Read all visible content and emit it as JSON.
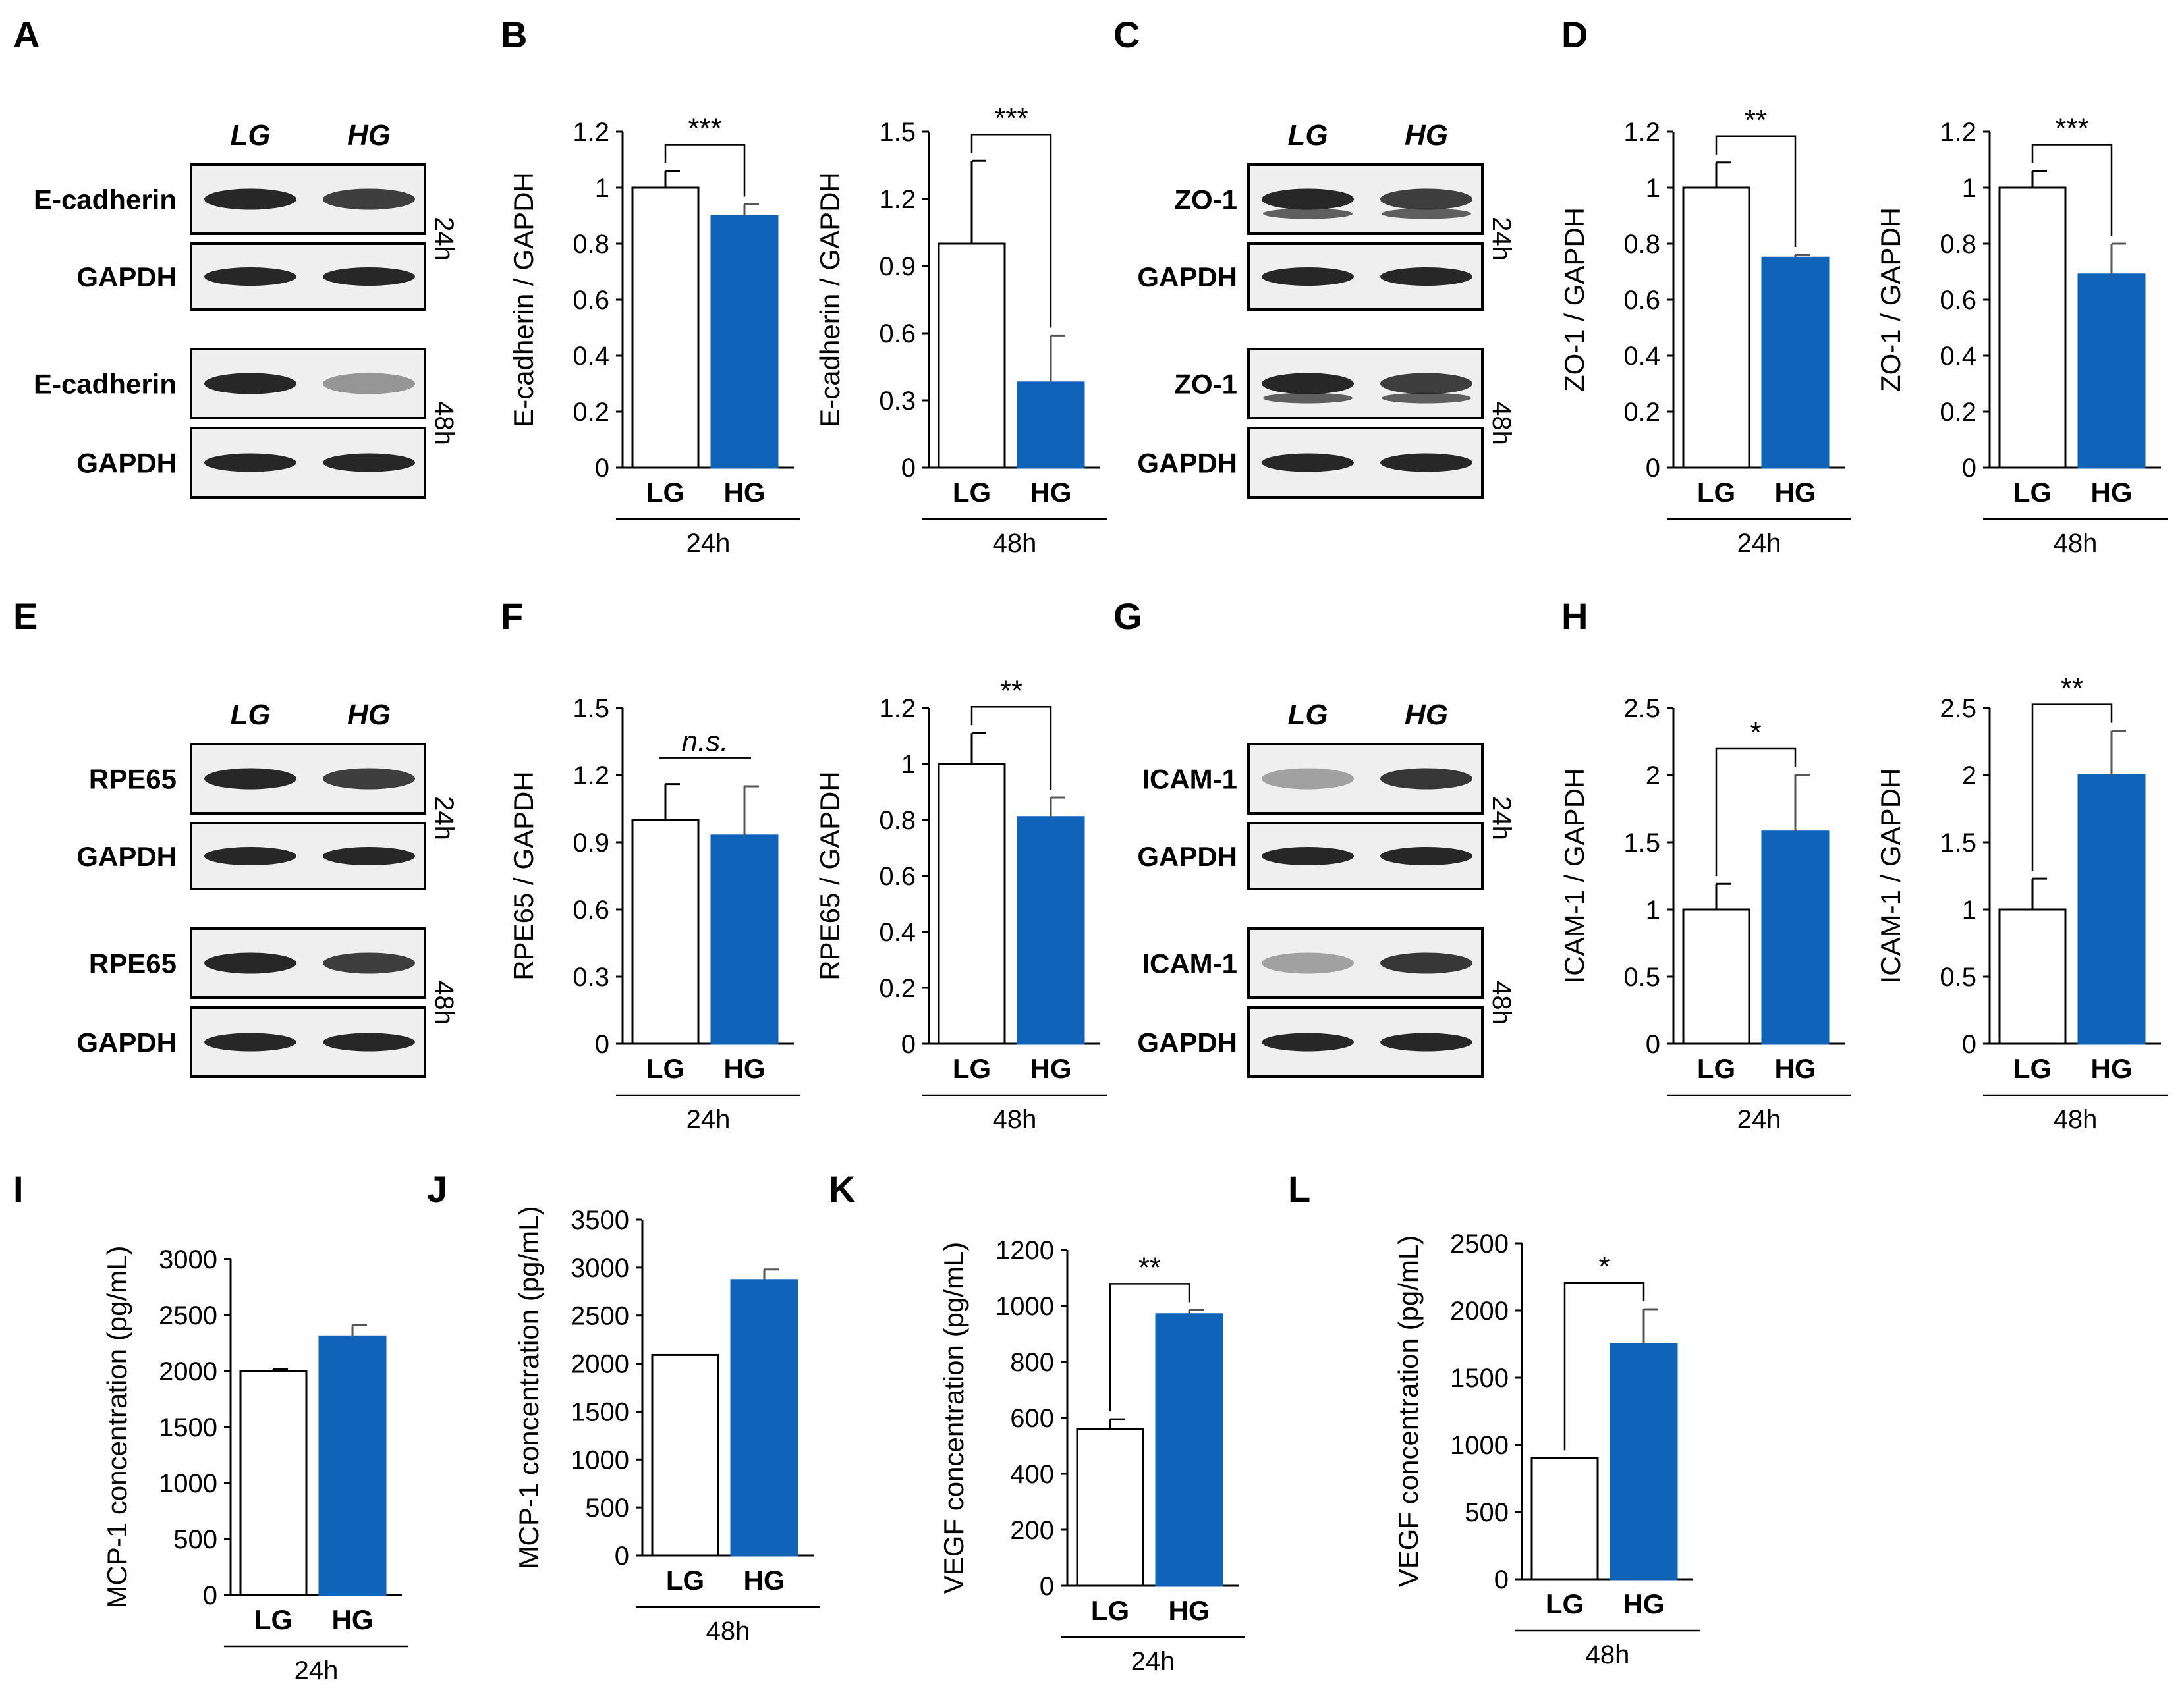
{
  "colors": {
    "lg_fill": "#ffffff",
    "hg_fill": "#0f63b8",
    "axis": "#000000"
  },
  "panels": [
    "A",
    "B",
    "C",
    "D",
    "E",
    "F",
    "G",
    "H",
    "I",
    "J",
    "K",
    "L"
  ],
  "blots": [
    {
      "panel": "A",
      "conditions": [
        "LG",
        "HG"
      ],
      "rows": [
        {
          "label": "E-cadherin",
          "time": "24h"
        },
        {
          "label": "GAPDH",
          "time": "24h"
        },
        {
          "label": "E-cadherin",
          "time": "48h"
        },
        {
          "label": "GAPDH",
          "time": "48h"
        }
      ]
    },
    {
      "panel": "C",
      "conditions": [
        "LG",
        "HG"
      ],
      "rows": [
        {
          "label": "ZO-1",
          "time": "24h"
        },
        {
          "label": "GAPDH",
          "time": "24h"
        },
        {
          "label": "ZO-1",
          "time": "48h"
        },
        {
          "label": "GAPDH",
          "time": "48h"
        }
      ]
    },
    {
      "panel": "E",
      "conditions": [
        "LG",
        "HG"
      ],
      "rows": [
        {
          "label": "RPE65",
          "time": "24h"
        },
        {
          "label": "GAPDH",
          "time": "24h"
        },
        {
          "label": "RPE65",
          "time": "48h"
        },
        {
          "label": "GAPDH",
          "time": "48h"
        }
      ]
    },
    {
      "panel": "G",
      "conditions": [
        "LG",
        "HG"
      ],
      "rows": [
        {
          "label": "ICAM-1",
          "time": "24h"
        },
        {
          "label": "GAPDH",
          "time": "24h"
        },
        {
          "label": "ICAM-1",
          "time": "48h"
        },
        {
          "label": "GAPDH",
          "time": "48h"
        }
      ]
    }
  ],
  "chart_data": [
    {
      "type": "bar",
      "panel": "B",
      "group": "24h",
      "ylabel": "E-cadherin / GAPDH",
      "categories": [
        "LG",
        "HG"
      ],
      "values": [
        1.0,
        0.9
      ],
      "errors": [
        0.06,
        0.04
      ],
      "ylim": [
        0,
        1.2
      ],
      "yticks": [
        "0",
        "0.2",
        "0.4",
        "0.6",
        "0.8",
        "1",
        "1.2"
      ],
      "significance": "***"
    },
    {
      "type": "bar",
      "panel": "B",
      "group": "48h",
      "ylabel": "E-cadherin / GAPDH",
      "categories": [
        "LG",
        "HG"
      ],
      "values": [
        1.0,
        0.38
      ],
      "errors": [
        0.37,
        0.21
      ],
      "ylim": [
        0,
        1.5
      ],
      "yticks": [
        "0",
        "0.3",
        "0.6",
        "0.9",
        "1.2",
        "1.5"
      ],
      "significance": "***"
    },
    {
      "type": "bar",
      "panel": "D",
      "group": "24h",
      "ylabel": "ZO-1 / GAPDH",
      "categories": [
        "LG",
        "HG"
      ],
      "values": [
        1.0,
        0.75
      ],
      "errors": [
        0.09,
        0.01
      ],
      "ylim": [
        0,
        1.2
      ],
      "yticks": [
        "0",
        "0.2",
        "0.4",
        "0.6",
        "0.8",
        "1",
        "1.2"
      ],
      "significance": "**"
    },
    {
      "type": "bar",
      "panel": "D",
      "group": "48h",
      "ylabel": "ZO-1 / GAPDH",
      "categories": [
        "LG",
        "HG"
      ],
      "values": [
        1.0,
        0.69
      ],
      "errors": [
        0.06,
        0.11
      ],
      "ylim": [
        0,
        1.2
      ],
      "yticks": [
        "0",
        "0.2",
        "0.4",
        "0.6",
        "0.8",
        "1",
        "1.2"
      ],
      "significance": "***"
    },
    {
      "type": "bar",
      "panel": "F",
      "group": "24h",
      "ylabel": "RPE65 / GAPDH",
      "categories": [
        "LG",
        "HG"
      ],
      "values": [
        1.0,
        0.93
      ],
      "errors": [
        0.16,
        0.22
      ],
      "ylim": [
        0,
        1.5
      ],
      "yticks": [
        "0",
        "0.3",
        "0.6",
        "0.9",
        "1.2",
        "1.5"
      ],
      "significance": "n.s."
    },
    {
      "type": "bar",
      "panel": "F",
      "group": "48h",
      "ylabel": "RPE65 / GAPDH",
      "categories": [
        "LG",
        "HG"
      ],
      "values": [
        1.0,
        0.81
      ],
      "errors": [
        0.11,
        0.07
      ],
      "ylim": [
        0,
        1.2
      ],
      "yticks": [
        "0",
        "0.2",
        "0.4",
        "0.6",
        "0.8",
        "1",
        "1.2"
      ],
      "significance": "**"
    },
    {
      "type": "bar",
      "panel": "H",
      "group": "24h",
      "ylabel": "ICAM-1 / GAPDH",
      "categories": [
        "LG",
        "HG"
      ],
      "values": [
        1.0,
        1.58
      ],
      "errors": [
        0.19,
        0.42
      ],
      "ylim": [
        0,
        2.5
      ],
      "yticks": [
        "0",
        "0.5",
        "1",
        "1.5",
        "2",
        "2.5"
      ],
      "significance": "*"
    },
    {
      "type": "bar",
      "panel": "H",
      "group": "48h",
      "ylabel": "ICAM-1 / GAPDH",
      "categories": [
        "LG",
        "HG"
      ],
      "values": [
        1.0,
        2.0
      ],
      "errors": [
        0.23,
        0.33
      ],
      "ylim": [
        0,
        2.5
      ],
      "yticks": [
        "0",
        "0.5",
        "1",
        "1.5",
        "2",
        "2.5"
      ],
      "significance": "**"
    },
    {
      "type": "bar",
      "panel": "I",
      "group": "24h",
      "ylabel": "MCP-1 concentration (pg/mL)",
      "categories": [
        "LG",
        "HG"
      ],
      "values": [
        2000,
        2310
      ],
      "errors": [
        15,
        100
      ],
      "ylim": [
        0,
        3000
      ],
      "yticks": [
        "0",
        "500",
        "1000",
        "1500",
        "2000",
        "2500",
        "3000"
      ],
      "significance": ""
    },
    {
      "type": "bar",
      "panel": "J",
      "group": "48h",
      "ylabel": "MCP-1 concentration (pg/mL)",
      "categories": [
        "LG",
        "HG"
      ],
      "values": [
        2090,
        2870
      ],
      "errors": [
        0,
        110
      ],
      "ylim": [
        0,
        3500
      ],
      "yticks": [
        "0",
        "500",
        "1000",
        "1500",
        "2000",
        "2500",
        "3000",
        "3500"
      ],
      "significance": ""
    },
    {
      "type": "bar",
      "panel": "K",
      "group": "24h",
      "ylabel": "VEGF concentration (pg/mL)",
      "categories": [
        "LG",
        "HG"
      ],
      "values": [
        560,
        970
      ],
      "errors": [
        35,
        15
      ],
      "ylim": [
        0,
        1200
      ],
      "yticks": [
        "0",
        "200",
        "400",
        "600",
        "800",
        "1000",
        "1200"
      ],
      "significance": "**"
    },
    {
      "type": "bar",
      "panel": "L",
      "group": "48h",
      "ylabel": "VEGF concentration (pg/mL)",
      "categories": [
        "LG",
        "HG"
      ],
      "values": [
        900,
        1750
      ],
      "errors": [
        0,
        260
      ],
      "ylim": [
        0,
        2500
      ],
      "yticks": [
        "0",
        "500",
        "1000",
        "1500",
        "2000",
        "2500"
      ],
      "significance": "*"
    }
  ]
}
